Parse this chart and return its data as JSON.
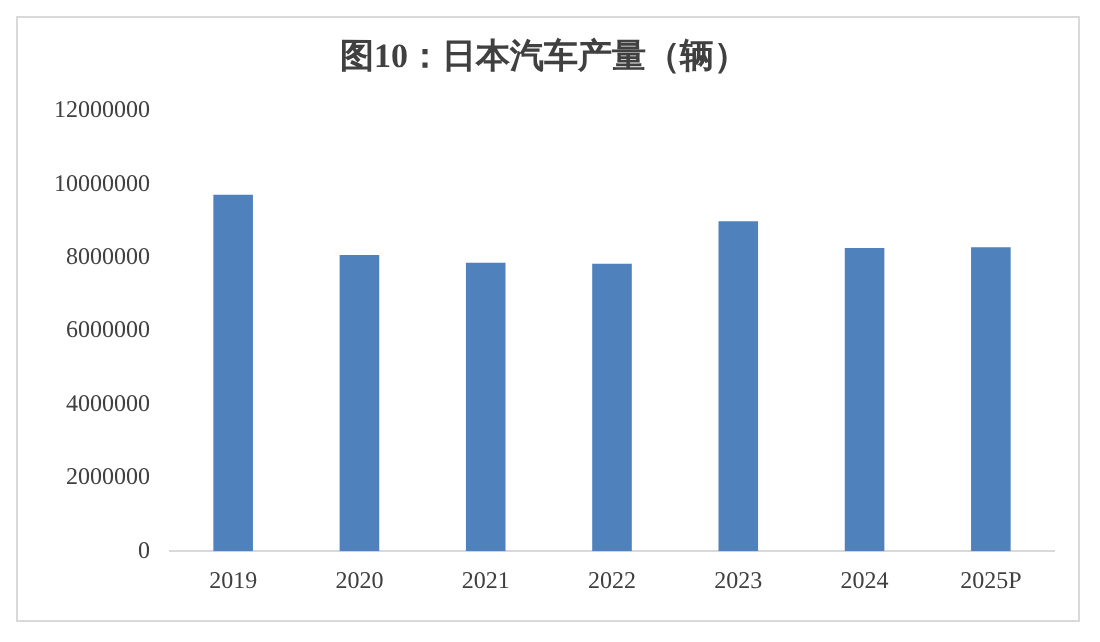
{
  "chart_data": {
    "type": "bar",
    "title": "图10：日本汽车产量（辆）",
    "categories": [
      "2019",
      "2020",
      "2021",
      "2022",
      "2023",
      "2024",
      "2025P"
    ],
    "values": [
      9710000,
      8070000,
      7860000,
      7830000,
      8990000,
      8260000,
      8280000
    ],
    "color": "#4f81bd",
    "ylim": [
      0,
      12000000
    ],
    "yticks": [
      0,
      2000000,
      4000000,
      6000000,
      8000000,
      10000000,
      12000000
    ],
    "grid": false,
    "legend": false
  }
}
